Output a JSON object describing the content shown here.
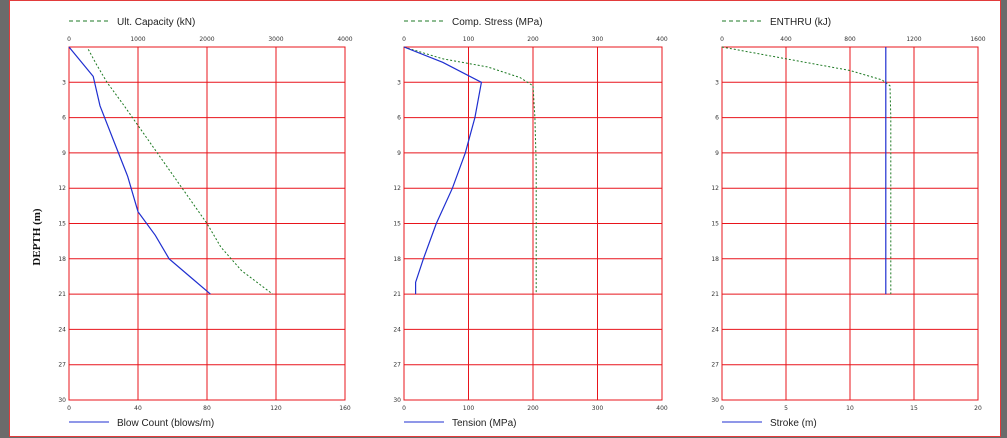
{
  "y_axis_label": "DEPTH (m)",
  "colors": {
    "grid": "#e8141b",
    "blue": "#1f2fd0",
    "green": "#1e7a24",
    "frame": "#e23b3b"
  },
  "chart_data": [
    {
      "type": "line",
      "y_label": "DEPTH (m)",
      "depth_range": [
        0,
        30
      ],
      "depth_ticks": [
        3,
        6,
        9,
        12,
        15,
        18,
        21,
        24,
        27,
        30
      ],
      "top_axis": {
        "label": "Ult. Capacity (kN)",
        "range": [
          0,
          4000
        ],
        "ticks": [
          0,
          1000,
          2000,
          3000,
          4000
        ]
      },
      "bottom_axis": {
        "label": "Blow Count (blows/m)",
        "range": [
          0,
          160
        ],
        "ticks": [
          0,
          40,
          80,
          120,
          160
        ]
      },
      "series": [
        {
          "name": "Ult. Capacity (kN)",
          "axis": "top",
          "style": "dashed",
          "color": "#1e7a24",
          "points": [
            [
              280,
              0.2
            ],
            [
              400,
              1.5
            ],
            [
              550,
              3
            ],
            [
              800,
              5
            ],
            [
              1100,
              7.5
            ],
            [
              1400,
              10
            ],
            [
              1700,
              12.5
            ],
            [
              2000,
              15
            ],
            [
              2200,
              17
            ],
            [
              2500,
              19
            ],
            [
              2950,
              21
            ]
          ]
        },
        {
          "name": "Blow Count (blows/m)",
          "axis": "bottom",
          "style": "solid",
          "color": "#1f2fd0",
          "points": [
            [
              0,
              0
            ],
            [
              14,
              2.5
            ],
            [
              18,
              5
            ],
            [
              26,
              8
            ],
            [
              34,
              11
            ],
            [
              40,
              14
            ],
            [
              50,
              16
            ],
            [
              58,
              18
            ],
            [
              70,
              19.5
            ],
            [
              82,
              21
            ]
          ]
        }
      ]
    },
    {
      "type": "line",
      "depth_range": [
        0,
        30
      ],
      "depth_ticks": [
        3,
        6,
        9,
        12,
        15,
        18,
        21,
        24,
        27,
        30
      ],
      "top_axis": {
        "label": "Comp. Stress (MPa)",
        "range": [
          0,
          400
        ],
        "ticks": [
          0,
          100,
          200,
          300,
          400
        ]
      },
      "bottom_axis": {
        "label": "Tension (MPa)",
        "range": [
          0,
          400
        ],
        "ticks": [
          0,
          100,
          200,
          300,
          400
        ]
      },
      "series": [
        {
          "name": "Comp. Stress (MPa)",
          "axis": "top",
          "style": "dashed",
          "color": "#1e7a24",
          "points": [
            [
              0,
              0
            ],
            [
              60,
              1
            ],
            [
              130,
              1.7
            ],
            [
              180,
              2.6
            ],
            [
              200,
              3.3
            ],
            [
              203,
              6
            ],
            [
              205,
              10
            ],
            [
              205,
              15
            ],
            [
              205,
              21
            ]
          ]
        },
        {
          "name": "Tension (MPa)",
          "axis": "bottom",
          "style": "solid",
          "color": "#1f2fd0",
          "points": [
            [
              0,
              0
            ],
            [
              60,
              1.3
            ],
            [
              120,
              3
            ],
            [
              110,
              6
            ],
            [
              95,
              9
            ],
            [
              75,
              12
            ],
            [
              50,
              15
            ],
            [
              30,
              18
            ],
            [
              18,
              20
            ],
            [
              18,
              21
            ]
          ]
        }
      ]
    },
    {
      "type": "line",
      "depth_range": [
        0,
        30
      ],
      "depth_ticks": [
        3,
        6,
        9,
        12,
        15,
        18,
        21,
        24,
        27,
        30
      ],
      "top_axis": {
        "label": "ENTHRU (kJ)",
        "range": [
          0,
          1600
        ],
        "ticks": [
          0,
          400,
          800,
          1200,
          1600
        ]
      },
      "bottom_axis": {
        "label": "Stroke (m)",
        "range": [
          0,
          20
        ],
        "ticks": [
          0,
          5,
          10,
          15,
          20
        ]
      },
      "series": [
        {
          "name": "ENTHRU (kJ)",
          "axis": "top",
          "style": "dashed",
          "color": "#1e7a24",
          "points": [
            [
              0,
              0
            ],
            [
              400,
              1
            ],
            [
              800,
              2
            ],
            [
              1000,
              2.8
            ],
            [
              1050,
              3.3
            ],
            [
              1055,
              6
            ],
            [
              1055,
              10
            ],
            [
              1055,
              15
            ],
            [
              1055,
              21
            ]
          ]
        },
        {
          "name": "Stroke (m)",
          "axis": "bottom",
          "style": "solid",
          "color": "#1f2fd0",
          "points": [
            [
              12.8,
              0
            ],
            [
              12.8,
              21
            ]
          ]
        }
      ]
    }
  ]
}
